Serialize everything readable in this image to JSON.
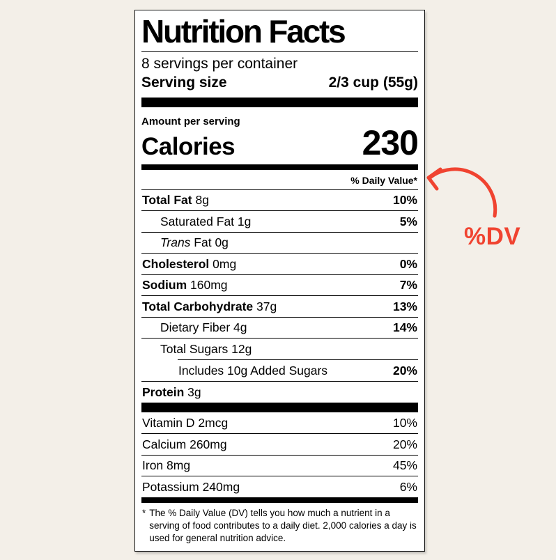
{
  "colors": {
    "page_background": "#f3efe8",
    "label_background": "#ffffff",
    "text": "#000000",
    "annotation": "#f04330"
  },
  "annotation": {
    "text": "%DV",
    "arrow_icon": "curved-arrow-pointing-to-daily-value"
  },
  "label": {
    "title": "Nutrition Facts",
    "servings_per_container": "8 servings per container",
    "serving_size": {
      "label": "Serving size",
      "value": "2/3 cup (55g)"
    },
    "amount_per_serving": "Amount per serving",
    "calories": {
      "label": "Calories",
      "value": "230"
    },
    "daily_value_header": "% Daily Value*",
    "nutrients": [
      {
        "name": "Total Fat",
        "amount": "8g",
        "dv": "10%",
        "name_bold": true,
        "dv_bold": true,
        "indent": 0
      },
      {
        "name": "Saturated Fat",
        "amount": "1g",
        "dv": "5%",
        "name_bold": false,
        "dv_bold": true,
        "indent": 1
      },
      {
        "name": "Trans",
        "amount": "Fat 0g",
        "dv": "",
        "name_bold": false,
        "name_italic": true,
        "indent": 1
      },
      {
        "name": "Cholesterol",
        "amount": "0mg",
        "dv": "0%",
        "name_bold": true,
        "dv_bold": true,
        "indent": 0
      },
      {
        "name": "Sodium",
        "amount": "160mg",
        "dv": "7%",
        "name_bold": true,
        "dv_bold": true,
        "indent": 0
      },
      {
        "name": "Total Carbohydrate",
        "amount": "37g",
        "dv": "13%",
        "name_bold": true,
        "dv_bold": true,
        "indent": 0
      },
      {
        "name": "Dietary Fiber",
        "amount": "4g",
        "dv": "14%",
        "name_bold": false,
        "dv_bold": true,
        "indent": 1
      },
      {
        "name": "Total Sugars",
        "amount": "12g",
        "dv": "",
        "name_bold": false,
        "indent": 1
      },
      {
        "name": "Includes 10g Added Sugars",
        "amount": "",
        "dv": "20%",
        "name_bold": false,
        "dv_bold": true,
        "indent": 2,
        "indented_divider": true
      },
      {
        "name": "Protein",
        "amount": "3g",
        "dv": "",
        "name_bold": true,
        "indent": 0
      }
    ],
    "vitamins": [
      {
        "name": "Vitamin D",
        "amount": "2mcg",
        "dv": "10%"
      },
      {
        "name": "Calcium",
        "amount": "260mg",
        "dv": "20%"
      },
      {
        "name": "Iron",
        "amount": "8mg",
        "dv": "45%"
      },
      {
        "name": "Potassium",
        "amount": "240mg",
        "dv": "6%"
      }
    ],
    "footnote_marker": "*",
    "footnote": "The % Daily Value (DV) tells you how much a nutrient in a serving of food contributes to a daily diet. 2,000 calories a day is used for general nutrition advice."
  }
}
